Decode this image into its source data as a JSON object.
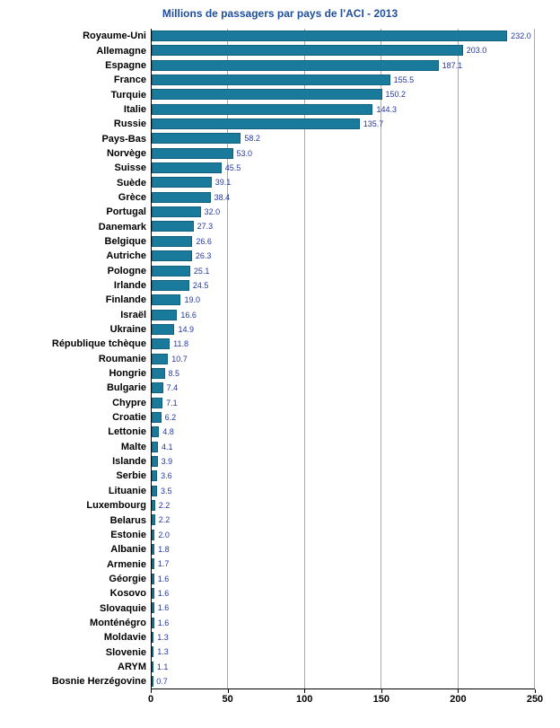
{
  "chart_data": {
    "type": "bar",
    "orientation": "horizontal",
    "title": "Millions de passagers par pays de l'ACI - 2013",
    "categories": [
      "Royaume-Uni",
      "Allemagne",
      "Espagne",
      "France",
      "Turquie",
      "Italie",
      "Russie",
      "Pays-Bas",
      "Norvège",
      "Suisse",
      "Suède",
      "Grèce",
      "Portugal",
      "Danemark",
      "Belgique",
      "Autriche",
      "Pologne",
      "Irlande",
      "Finlande",
      "Israël",
      "Ukraine",
      "République tchèque",
      "Roumanie",
      "Hongrie",
      "Bulgarie",
      "Chypre",
      "Croatie",
      "Lettonie",
      "Malte",
      "Islande",
      "Serbie",
      "Lituanie",
      "Luxembourg",
      "Belarus",
      "Estonie",
      "Albanie",
      "Armenie",
      "Géorgie",
      "Kosovo",
      "Slovaquie",
      "Monténégro",
      "Moldavie",
      "Slovenie",
      "ARYM",
      "Bosnie Herzégovine"
    ],
    "values": [
      232.0,
      203.0,
      187.1,
      155.5,
      150.2,
      144.3,
      135.7,
      58.2,
      53.0,
      45.5,
      39.1,
      38.4,
      32.0,
      27.3,
      26.6,
      26.3,
      25.1,
      24.5,
      19.0,
      16.6,
      14.9,
      11.8,
      10.7,
      8.5,
      7.4,
      7.1,
      6.2,
      4.8,
      4.1,
      3.9,
      3.6,
      3.5,
      2.2,
      2.2,
      2.0,
      1.8,
      1.7,
      1.6,
      1.6,
      1.6,
      1.6,
      1.3,
      1.3,
      1.1,
      0.7
    ],
    "xlabel": "",
    "ylabel": "",
    "xlim": [
      0,
      250
    ],
    "x_ticks": [
      0,
      50,
      100,
      150,
      200,
      250
    ],
    "grid": true,
    "legend": "none",
    "bar_color": "#1a7a9c",
    "value_label_color": "#2438a0",
    "title_color": "#1f4e9e"
  }
}
